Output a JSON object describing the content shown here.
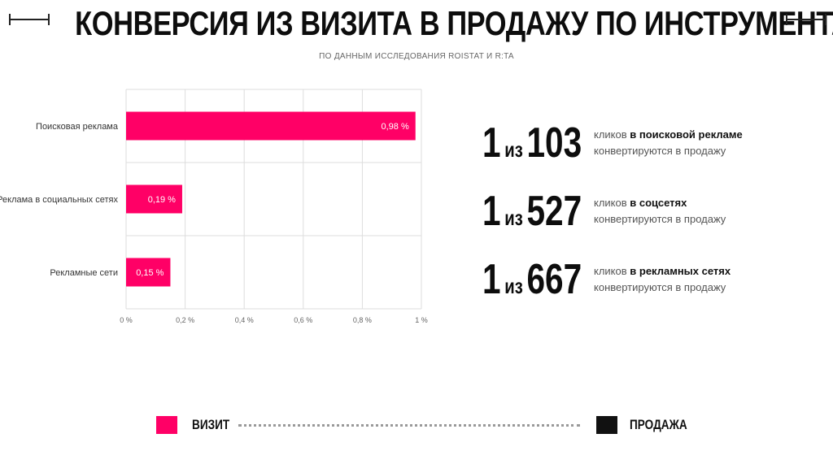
{
  "title": "КОНВЕРСИЯ ИЗ ВИЗИТА В ПРОДАЖУ ПО ИНСТРУМЕНТАМ",
  "subtitle": "ПО ДАННЫМ ИССЛЕДОВАНИЯ ROISTAT И R:TA",
  "colors": {
    "visit": "#ff0066",
    "sale": "#111111",
    "grid": "#dddddd"
  },
  "chart_data": {
    "type": "bar",
    "orientation": "horizontal",
    "categories": [
      "Поисковая реклама",
      "Реклама в социальных сетях",
      "Рекламные сети"
    ],
    "values": [
      0.98,
      0.19,
      0.15
    ],
    "data_labels": [
      "0,98 %",
      "0,19 %",
      "0,15 %"
    ],
    "x_ticks": [
      "0 %",
      "0,2 %",
      "0,4 %",
      "0,6 %",
      "0,8 %",
      "1 %"
    ],
    "xlim": [
      0,
      1
    ],
    "grid": true
  },
  "stats": [
    {
      "one": "1",
      "of": "из",
      "number": "103",
      "prefix": "кликов",
      "bold": "в поисковой рекламе",
      "line2": "конвертируются в продажу"
    },
    {
      "one": "1",
      "of": "из",
      "number": "527",
      "prefix": "кликов",
      "bold": "в соцсетях",
      "line2": "конвертируются в продажу"
    },
    {
      "one": "1",
      "of": "из",
      "number": "667",
      "prefix": "кликов",
      "bold": "в рекламных сетях",
      "line2": "конвертируются в продажу"
    }
  ],
  "legend": {
    "visit_label": "ВИЗИТ",
    "sale_label": "ПРОДАЖА"
  }
}
